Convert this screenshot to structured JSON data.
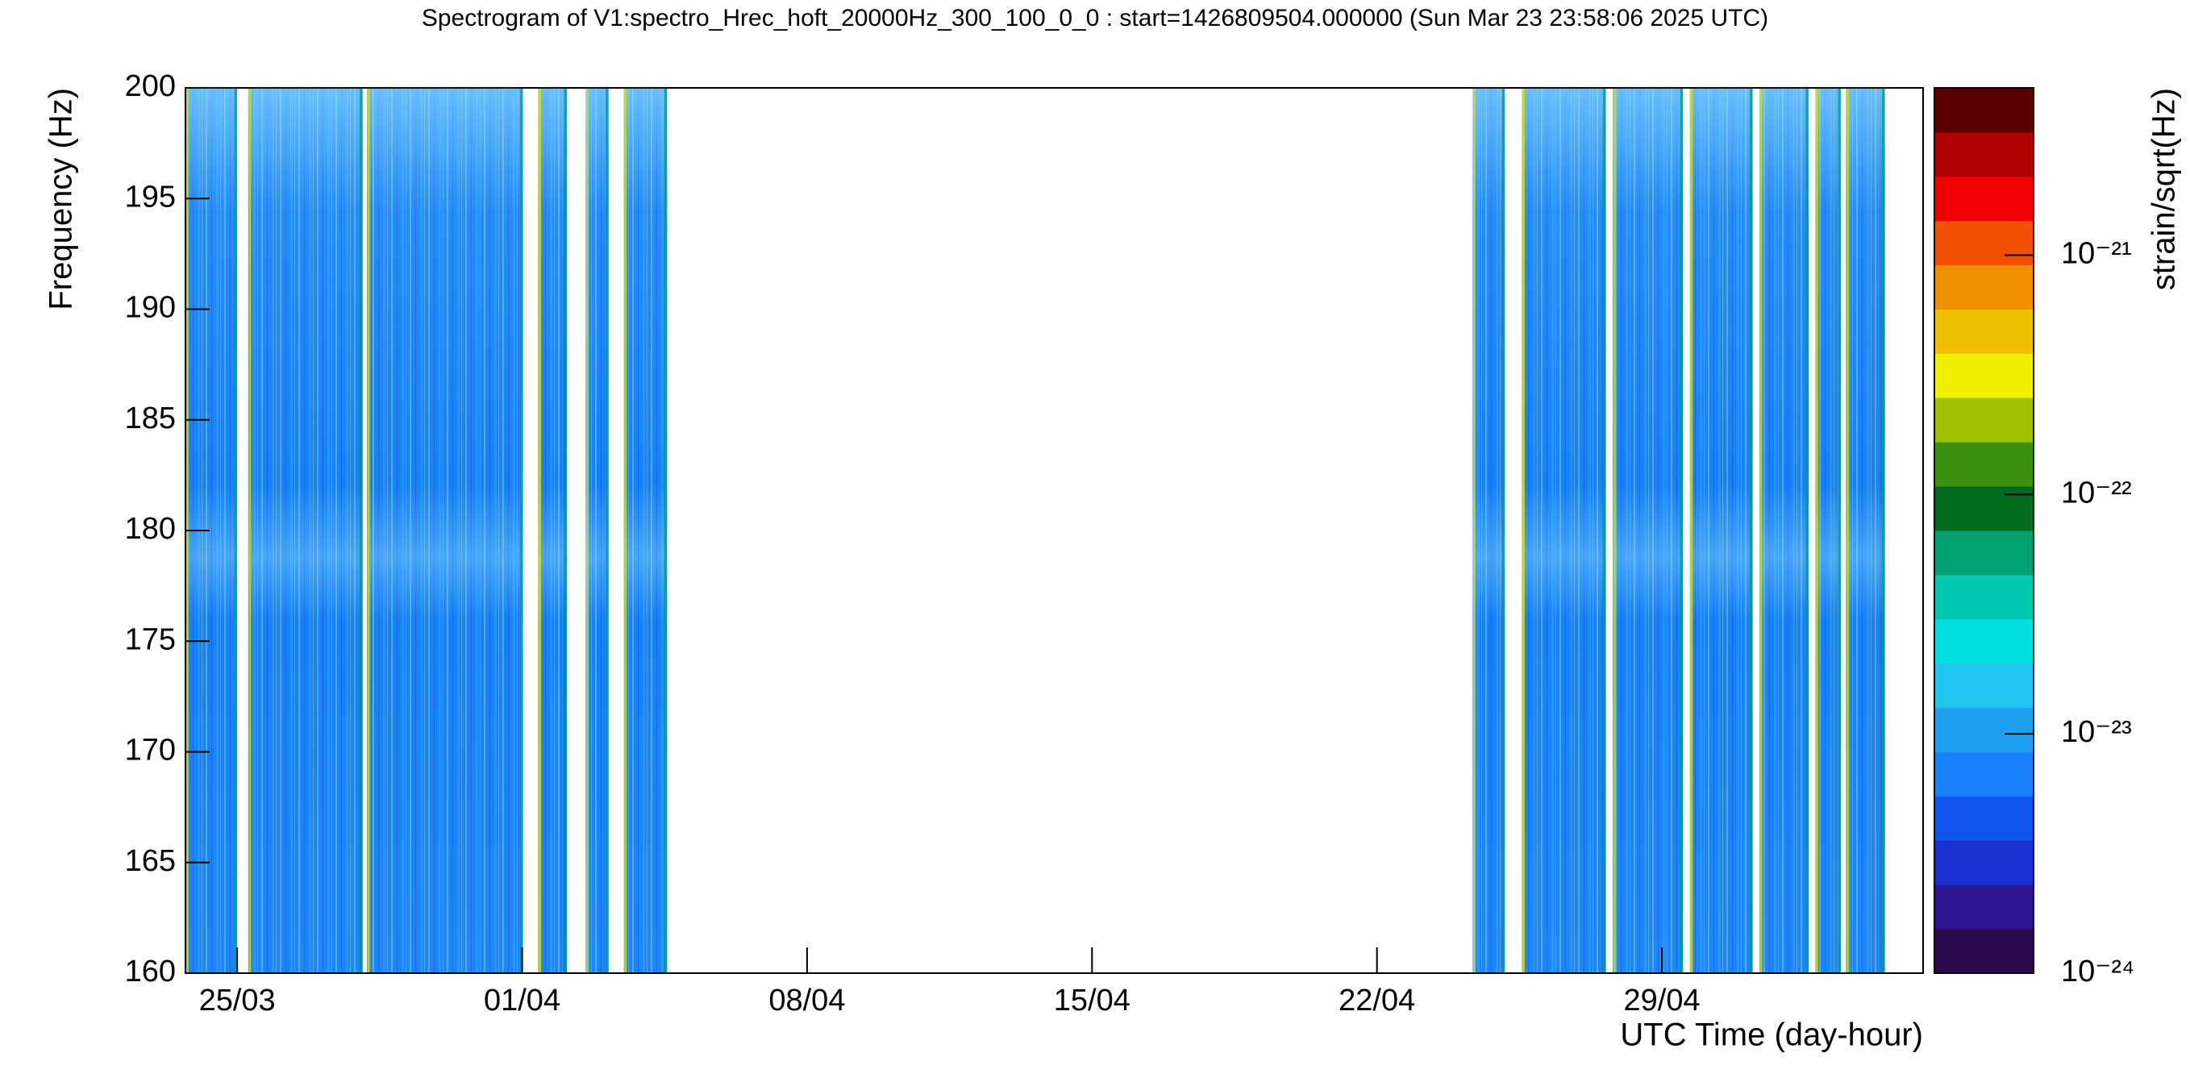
{
  "chart_data": {
    "type": "spectrogram",
    "title": "Spectrogram of V1:spectro_Hrec_hoft_20000Hz_300_100_0_0 : start=1426809504.000000 (Sun Mar 23 23:58:06 2025 UTC)",
    "x_label": "UTC Time (day-hour)",
    "y_label": "Frequency (Hz)",
    "z_label": "strain/sqrt(Hz)",
    "xlim": [
      "2025-03-23T17:30",
      "2025-05-05T10:00"
    ],
    "xticks": [
      {
        "value": "2025-03-25T00:00",
        "label": "25/03"
      },
      {
        "value": "2025-04-01T00:00",
        "label": "01/04"
      },
      {
        "value": "2025-04-08T00:00",
        "label": "08/04"
      },
      {
        "value": "2025-04-15T00:00",
        "label": "15/04"
      },
      {
        "value": "2025-04-22T00:00",
        "label": "22/04"
      },
      {
        "value": "2025-04-29T00:00",
        "label": "29/04"
      }
    ],
    "ylim": [
      160,
      200
    ],
    "yticks": [
      160,
      165,
      170,
      175,
      180,
      185,
      190,
      195,
      200
    ],
    "zlim": [
      1e-24,
      5e-21
    ],
    "zlog": true,
    "zticks": [
      {
        "value": 1e-24,
        "label": "10⁻²⁴"
      },
      {
        "value": 1e-23,
        "label": "10⁻²³"
      },
      {
        "value": 1e-22,
        "label": "10⁻²²"
      },
      {
        "value": 1e-21,
        "label": "10⁻²¹"
      }
    ],
    "colormap": [
      "#2a0a4a",
      "#2d1390",
      "#1a2fd0",
      "#1255ec",
      "#1a80f8",
      "#1ea0f0",
      "#20c4f0",
      "#00dede",
      "#00c8b0",
      "#00a070",
      "#006a20",
      "#3c9010",
      "#a0c000",
      "#f0f000",
      "#f0c000",
      "#f09000",
      "#f05000",
      "#f00000",
      "#b00000",
      "#5a0000"
    ],
    "segments": [
      {
        "start": "2025-03-23T17:30",
        "end": "2025-03-25T00:00",
        "value": 7e-24
      },
      {
        "start": "2025-03-25T06:30",
        "end": "2025-03-28T02:00",
        "value": 7e-24
      },
      {
        "start": "2025-03-28T04:30",
        "end": "2025-04-01T00:30",
        "value": 7e-24
      },
      {
        "start": "2025-04-01T09:30",
        "end": "2025-04-02T02:30",
        "value": 6e-24
      },
      {
        "start": "2025-04-02T13:30",
        "end": "2025-04-03T03:00",
        "value": 7e-24
      },
      {
        "start": "2025-04-03T12:00",
        "end": "2025-04-04T13:30",
        "value": 8e-24
      },
      {
        "start": "2025-04-24T08:30",
        "end": "2025-04-25T03:30",
        "value": 8e-24
      },
      {
        "start": "2025-04-25T13:30",
        "end": "2025-04-27T15:00",
        "value": 8e-24
      },
      {
        "start": "2025-04-27T19:00",
        "end": "2025-04-29T12:30",
        "value": 8e-24
      },
      {
        "start": "2025-04-29T16:30",
        "end": "2025-05-01T05:30",
        "value": 8e-24
      },
      {
        "start": "2025-05-01T09:30",
        "end": "2025-05-02T14:30",
        "value": 8e-24
      },
      {
        "start": "2025-05-02T18:30",
        "end": "2025-05-03T09:30",
        "value": 8e-24
      },
      {
        "start": "2025-05-03T12:30",
        "end": "2025-05-04T11:30",
        "value": 8e-24
      }
    ]
  }
}
